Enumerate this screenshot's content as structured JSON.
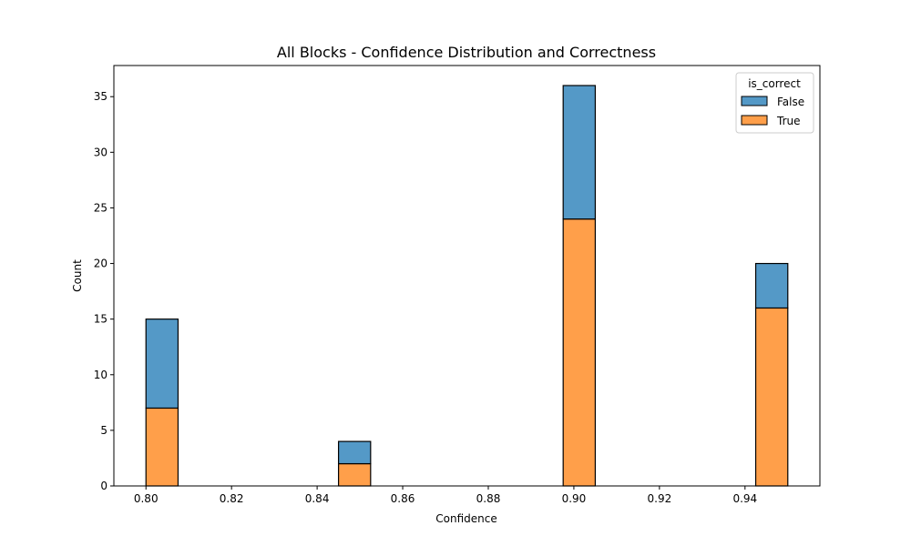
{
  "chart_data": {
    "type": "bar",
    "stacked": true,
    "title": "All Blocks - Confidence Distribution and Correctness",
    "xlabel": "Confidence",
    "ylabel": "Count",
    "xlim": [
      0.7925,
      0.9575
    ],
    "ylim": [
      0,
      37.8
    ],
    "xticks": [
      0.8,
      0.82,
      0.84,
      0.86,
      0.88,
      0.9,
      0.92,
      0.94
    ],
    "xtick_labels": [
      "0.80",
      "0.82",
      "0.84",
      "0.86",
      "0.88",
      "0.90",
      "0.92",
      "0.94"
    ],
    "yticks": [
      0,
      5,
      10,
      15,
      20,
      25,
      30,
      35
    ],
    "ytick_labels": [
      "0",
      "5",
      "10",
      "15",
      "20",
      "25",
      "30",
      "35"
    ],
    "bins": [
      {
        "x0": 0.8,
        "x1": 0.8075
      },
      {
        "x0": 0.845,
        "x1": 0.8525
      },
      {
        "x0": 0.8975,
        "x1": 0.905
      },
      {
        "x0": 0.9425,
        "x1": 0.95
      }
    ],
    "series": [
      {
        "name": "True",
        "color": "#ff9f4a",
        "values": [
          7,
          2,
          24,
          16
        ]
      },
      {
        "name": "False",
        "color": "#5499c7",
        "values": [
          8,
          2,
          12,
          4
        ]
      }
    ],
    "legend": {
      "title": "is_correct",
      "placement": "top-right",
      "entries": [
        {
          "label": "False",
          "color": "#5499c7"
        },
        {
          "label": "True",
          "color": "#ff9f4a"
        }
      ]
    },
    "grid": false
  }
}
